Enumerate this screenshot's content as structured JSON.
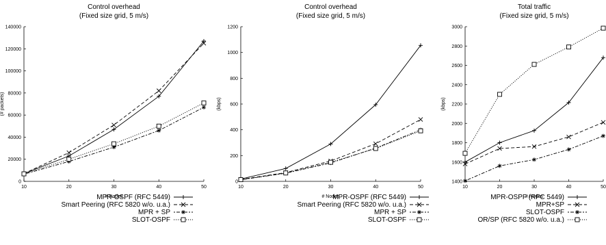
{
  "chart_data": [
    {
      "type": "line",
      "title": "Control overhead",
      "subtitle": "(Fixed size grid, 5 m/s)",
      "xlabel": "# Nodes",
      "ylabel": "(# packets)",
      "x": [
        10,
        20,
        30,
        40,
        50
      ],
      "xlim": [
        10,
        50
      ],
      "ylim": [
        0,
        140000
      ],
      "xticks": [
        10,
        20,
        30,
        40,
        50
      ],
      "yticks": [
        0,
        20000,
        40000,
        60000,
        80000,
        100000,
        120000,
        140000
      ],
      "grid": false,
      "legend_position": "below",
      "series": [
        {
          "name": "MPR-OSPF (RFC 5449)",
          "values": [
            7000,
            23000,
            47000,
            77000,
            127000
          ],
          "dash": "solid",
          "marker": "plus"
        },
        {
          "name": "Smart Peering (RFC 5820 w/o. u.a.)",
          "values": [
            7000,
            26000,
            51000,
            82000,
            125000
          ],
          "dash": "dashed",
          "marker": "x"
        },
        {
          "name": "MPR + SP",
          "values": [
            6500,
            18000,
            31000,
            46000,
            67000
          ],
          "dash": "dashdot",
          "marker": "star"
        },
        {
          "name": "SLOT-OSPF",
          "values": [
            6800,
            20000,
            34000,
            50000,
            71000
          ],
          "dash": "dotted",
          "marker": "square"
        }
      ]
    },
    {
      "type": "line",
      "title": "Control overhead",
      "subtitle": "(Fixed size grid, 5 m/s)",
      "xlabel": "# Nodes",
      "ylabel": "(kbps)",
      "x": [
        10,
        20,
        30,
        40,
        50
      ],
      "xlim": [
        10,
        50
      ],
      "ylim": [
        0,
        1200
      ],
      "xticks": [
        10,
        20,
        30,
        40,
        50
      ],
      "yticks": [
        0,
        200,
        400,
        600,
        800,
        1000,
        1200
      ],
      "grid": false,
      "legend_position": "below",
      "series": [
        {
          "name": "MPR-OSPF (RFC 5449)",
          "values": [
            18,
            100,
            290,
            595,
            1055
          ],
          "dash": "solid",
          "marker": "plus"
        },
        {
          "name": "Smart Peering (RFC 5820 w/o. u.a.)",
          "values": [
            15,
            68,
            158,
            292,
            480
          ],
          "dash": "dashed",
          "marker": "x"
        },
        {
          "name": "MPR + SP",
          "values": [
            12,
            63,
            143,
            258,
            400
          ],
          "dash": "dashdot",
          "marker": "star"
        },
        {
          "name": "SLOT-OSPF",
          "values": [
            13,
            65,
            148,
            255,
            392
          ],
          "dash": "dotted",
          "marker": "square"
        }
      ]
    },
    {
      "type": "line",
      "title": "Total traffic",
      "subtitle": "(Fixed size grid, 5 m/s)",
      "xlabel": "# Nodes",
      "ylabel": "(kbps)",
      "x": [
        10,
        20,
        30,
        40,
        50
      ],
      "xlim": [
        10,
        50
      ],
      "ylim": [
        1400,
        3000
      ],
      "xticks": [
        10,
        20,
        30,
        40,
        50
      ],
      "yticks": [
        1400,
        1600,
        1800,
        2000,
        2200,
        2400,
        2600,
        2800,
        3000
      ],
      "grid": false,
      "legend_position": "below",
      "series": [
        {
          "name": "MPR-OSPF (RFC 5449)",
          "values": [
            1600,
            1800,
            1925,
            2215,
            2680
          ],
          "dash": "solid",
          "marker": "plus"
        },
        {
          "name": "MPR+SP",
          "values": [
            1580,
            1740,
            1760,
            1860,
            2010
          ],
          "dash": "dashed",
          "marker": "x"
        },
        {
          "name": "SLOT-OSPF",
          "values": [
            1405,
            1560,
            1625,
            1730,
            1870
          ],
          "dash": "dashdot",
          "marker": "star"
        },
        {
          "name": "OR/SP (RFC 5820 w/o. u.a.)",
          "values": [
            1690,
            2300,
            2610,
            2790,
            2985
          ],
          "dash": "dotted",
          "marker": "square"
        }
      ]
    }
  ]
}
